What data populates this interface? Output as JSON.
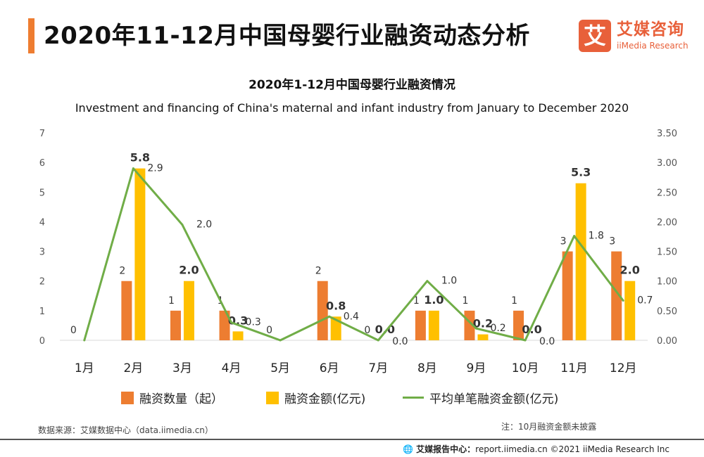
{
  "header": {
    "title": "2020年11-12月中国母婴行业融资动态分析"
  },
  "logo": {
    "mark": "艾",
    "name_cn": "艾媒咨询",
    "name_en": "iiMedia Research"
  },
  "colors": {
    "accent": "#ee7d31",
    "count_bar": "#ed7d31",
    "amount_bar": "#ffc000",
    "avg_line": "#70ad47",
    "logo": "#e8603a"
  },
  "chart_data": {
    "type": "bar",
    "title": "2020年1-12月中国母婴行业融资情况",
    "subtitle": "Investment and financing of China's maternal and infant industry from January to December 2020",
    "categories": [
      "1月",
      "2月",
      "3月",
      "4月",
      "5月",
      "6月",
      "7月",
      "8月",
      "9月",
      "10月",
      "11月",
      "12月"
    ],
    "series": [
      {
        "name": "融资数量（起）",
        "type": "bar",
        "axis": "left",
        "values": [
          0,
          2,
          1,
          1,
          0,
          2,
          0,
          1,
          1,
          1,
          3,
          3
        ],
        "labels": [
          "0",
          "2",
          "1",
          "1",
          "0",
          "2",
          "0",
          "1",
          "1",
          "1",
          "3",
          "3"
        ]
      },
      {
        "name": "融资金额(亿元)",
        "type": "bar",
        "axis": "left",
        "values": [
          null,
          5.8,
          2.0,
          0.3,
          null,
          0.8,
          0.0,
          1.0,
          0.2,
          0.0,
          5.3,
          2.0
        ],
        "labels": [
          "",
          "5.8",
          "2.0",
          "0.3",
          "",
          "0.8",
          "0.0",
          "1.0",
          "0.2",
          "0.0",
          "5.3",
          "2.0"
        ]
      },
      {
        "name": "平均单笔融资金额(亿元)",
        "type": "line",
        "axis": "right",
        "values": [
          0,
          2.9,
          1.95,
          0.3,
          0,
          0.4,
          0,
          1.0,
          0.2,
          0,
          1.76,
          0.67
        ],
        "labels": [
          "",
          "2.9",
          "2.0",
          "0.3",
          "",
          "0.4",
          "0.0",
          "1.0",
          "0.2",
          "0.0",
          "1.8",
          "0.7"
        ]
      }
    ],
    "left_axis": {
      "range": [
        0,
        7
      ],
      "ticks": [
        "0",
        "1",
        "2",
        "3",
        "4",
        "5",
        "6",
        "7"
      ]
    },
    "right_axis": {
      "range": [
        0,
        3.5
      ],
      "ticks": [
        "0.00",
        "0.50",
        "1.00",
        "1.50",
        "2.00",
        "2.50",
        "3.00",
        "3.50"
      ]
    },
    "grid": false,
    "legend_position": "bottom"
  },
  "source": "数据来源：艾媒数据中心（data.iimedia.cn）",
  "footnote": "注：10月融资金额未披露",
  "footer": {
    "label": "艾媒报告中心：",
    "text": "report.iimedia.cn  ©2021  iiMedia Research  Inc"
  }
}
